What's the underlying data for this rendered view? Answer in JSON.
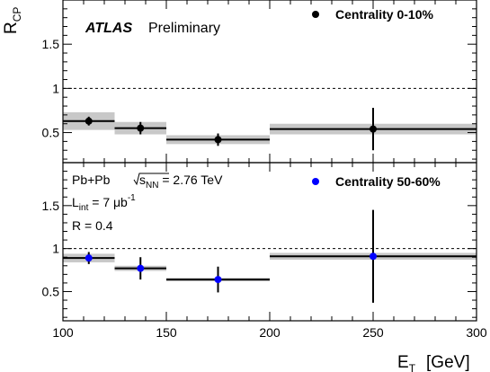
{
  "chart_data": {
    "type": "scatter",
    "x_axis": {
      "label_main": "E",
      "label_sub": "T",
      "label_unit": "[GeV]",
      "range": [
        100,
        300
      ],
      "ticks": [
        "100",
        "150",
        "200",
        "250",
        "300"
      ]
    },
    "y_axis": {
      "label_main": "R",
      "label_sub": "CP",
      "range": [
        0,
        2
      ]
    },
    "experiment": "ATLAS",
    "status": "Preliminary",
    "info": {
      "system": "Pb+Pb",
      "energy_pre": "s",
      "energy_sub": "NN",
      "energy_post": " = 2.76 TeV",
      "lumi_main": "L",
      "lumi_sub": "int",
      "lumi_value": " = 7 μb",
      "lumi_sup": "-1",
      "radius": "R = 0.4"
    },
    "panels": [
      {
        "y_ticks": [
          "0.5",
          "1",
          "1.5"
        ],
        "reference_line": 1,
        "series": [
          {
            "name": "Centrality  0-10%",
            "color": "#000000",
            "points": [
              {
                "x": 112.5,
                "y": 0.63,
                "xlow": 100,
                "xhigh": 125,
                "err": 0.05,
                "syst": 0.1
              },
              {
                "x": 137.5,
                "y": 0.55,
                "xlow": 125,
                "xhigh": 150,
                "err": 0.07,
                "syst": 0.07
              },
              {
                "x": 175,
                "y": 0.42,
                "xlow": 150,
                "xhigh": 200,
                "err": 0.07,
                "syst": 0.05
              },
              {
                "x": 250,
                "y": 0.54,
                "xlow": 200,
                "xhigh": 300,
                "err": 0.24,
                "syst": 0.06
              }
            ]
          }
        ]
      },
      {
        "y_ticks": [
          "0.5",
          "1",
          "1.5"
        ],
        "reference_line": 1,
        "series": [
          {
            "name": "Centrality 50-60%",
            "color": "#0000ff",
            "points": [
              {
                "x": 112.5,
                "y": 0.89,
                "xlow": 100,
                "xhigh": 125,
                "err": 0.07,
                "syst": 0.05
              },
              {
                "x": 137.5,
                "y": 0.77,
                "xlow": 125,
                "xhigh": 150,
                "err": 0.13,
                "syst": 0.03
              },
              {
                "x": 175,
                "y": 0.64,
                "xlow": 150,
                "xhigh": 200,
                "err": 0.15,
                "syst": 0.02
              },
              {
                "x": 250,
                "y": 0.91,
                "xlow": 200,
                "xhigh": 300,
                "err": 0.54,
                "syst": 0.04
              }
            ]
          }
        ]
      }
    ]
  }
}
